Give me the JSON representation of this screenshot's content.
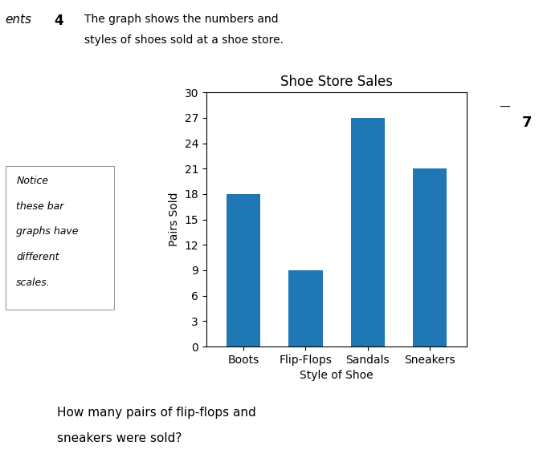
{
  "chart_data": {
    "type": "bar",
    "title": "Shoe Store Sales",
    "x_label": "Style of Shoe",
    "y_label": "Pairs Sold",
    "categories": [
      "Boots",
      "Flip-Flops",
      "Sandals",
      "Sneakers"
    ],
    "values": [
      18,
      9,
      27,
      21
    ],
    "ylim": [
      0,
      30
    ],
    "yticks": [
      0,
      3,
      6,
      9,
      12,
      15,
      18,
      21,
      24,
      27,
      30
    ],
    "grid": false,
    "annotations": [
      "ents",
      "4",
      "The graph shows the numbers and",
      "styles of shoes sold at a shoe store.",
      "—",
      "7",
      "Notice",
      "these bar",
      "graphs have",
      "different",
      "scales.",
      "How many pairs of flip-flops and",
      "sneakers were sold?"
    ]
  }
}
